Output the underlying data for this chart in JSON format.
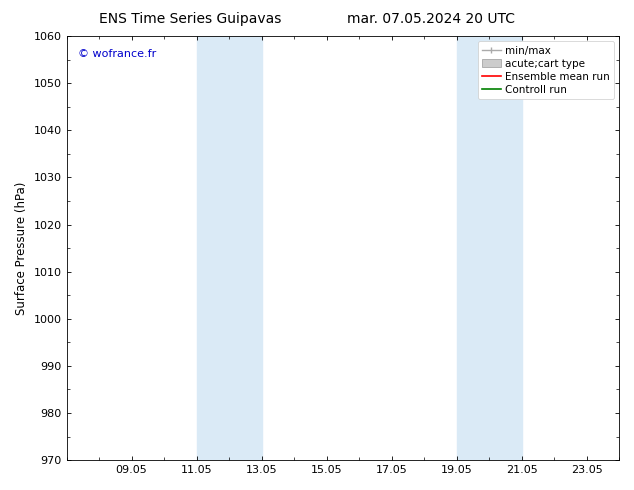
{
  "title_left": "ENS Time Series Guipavas",
  "title_right": "mar. 07.05.2024 20 UTC",
  "ylabel": "Surface Pressure (hPa)",
  "ylim": [
    970,
    1060
  ],
  "yticks": [
    970,
    980,
    990,
    1000,
    1010,
    1020,
    1030,
    1040,
    1050,
    1060
  ],
  "xtick_labels": [
    "09.05",
    "11.05",
    "13.05",
    "15.05",
    "17.05",
    "19.05",
    "21.05",
    "23.05"
  ],
  "xtick_positions": [
    2,
    4,
    6,
    8,
    10,
    12,
    14,
    16
  ],
  "xlim": [
    0,
    17
  ],
  "shaded_regions": [
    {
      "x_start": 4,
      "x_end": 6,
      "color": "#daeaf6"
    },
    {
      "x_start": 12,
      "x_end": 14,
      "color": "#daeaf6"
    }
  ],
  "watermark": "© wofrance.fr",
  "watermark_color": "#0000cc",
  "background_color": "#ffffff",
  "plot_bg_color": "#ffffff",
  "title_fontsize": 10,
  "tick_label_fontsize": 8,
  "ylabel_fontsize": 8.5,
  "legend_fontsize": 7.5
}
